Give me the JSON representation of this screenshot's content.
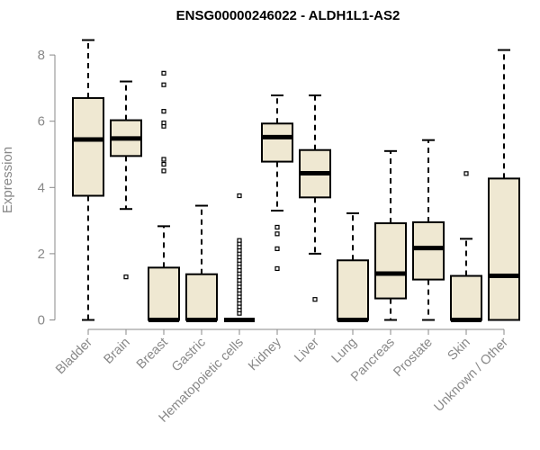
{
  "chart_data": {
    "type": "boxplot",
    "title": "ENSG00000246022 - ALDH1L1-AS2",
    "ylabel": "Expression",
    "xlabel": "",
    "ylim": [
      0,
      8.5
    ],
    "yticks": [
      0,
      2,
      4,
      6,
      8
    ],
    "grid": false,
    "legend": "none",
    "colors": {
      "box_fill": "#efe8d2",
      "stroke": "#000000",
      "axis_text": "#888888"
    },
    "categories": [
      "Bladder",
      "Brain",
      "Breast",
      "Gastric",
      "Hematopoietic cells",
      "Kidney",
      "Liver",
      "Lung",
      "Pancreas",
      "Prostate",
      "Skin",
      "Unknown / Other"
    ],
    "boxes": [
      {
        "category": "Bladder",
        "whisker_low": 0,
        "q1": 3.75,
        "median": 5.45,
        "q3": 6.7,
        "whisker_high": 8.45,
        "outliers": []
      },
      {
        "category": "Brain",
        "whisker_low": 3.35,
        "q1": 4.95,
        "median": 5.48,
        "q3": 6.03,
        "whisker_high": 7.2,
        "outliers": [
          1.3
        ]
      },
      {
        "category": "Breast",
        "whisker_low": 0,
        "q1": 0,
        "median": 0,
        "q3": 1.58,
        "whisker_high": 2.83,
        "outliers": [
          4.5,
          4.7,
          4.85,
          5.85,
          5.95,
          6.3,
          7.1,
          7.45
        ]
      },
      {
        "category": "Gastric",
        "whisker_low": 0,
        "q1": 0,
        "median": 0,
        "q3": 1.38,
        "whisker_high": 3.45,
        "outliers": []
      },
      {
        "category": "Hematopoietic cells",
        "whisker_low": 0,
        "q1": 0,
        "median": 0,
        "q3": 0,
        "whisker_high": 0,
        "outliers": [
          0.2,
          0.3,
          0.4,
          0.5,
          0.6,
          0.7,
          0.8,
          0.9,
          1.0,
          1.1,
          1.2,
          1.3,
          1.4,
          1.5,
          1.6,
          1.7,
          1.8,
          1.9,
          2.0,
          2.1,
          2.2,
          2.3,
          2.4,
          3.75
        ]
      },
      {
        "category": "Kidney",
        "whisker_low": 3.3,
        "q1": 4.78,
        "median": 5.52,
        "q3": 5.93,
        "whisker_high": 6.78,
        "outliers": [
          1.55,
          2.15,
          2.6,
          2.8
        ]
      },
      {
        "category": "Liver",
        "whisker_low": 2.0,
        "q1": 3.7,
        "median": 4.43,
        "q3": 5.13,
        "whisker_high": 6.78,
        "outliers": [
          0.62
        ]
      },
      {
        "category": "Lung",
        "whisker_low": 0,
        "q1": 0,
        "median": 0,
        "q3": 1.8,
        "whisker_high": 3.22,
        "outliers": []
      },
      {
        "category": "Pancreas",
        "whisker_low": 0,
        "q1": 0.65,
        "median": 1.4,
        "q3": 2.92,
        "whisker_high": 5.1,
        "outliers": []
      },
      {
        "category": "Prostate",
        "whisker_low": 0,
        "q1": 1.22,
        "median": 2.17,
        "q3": 2.95,
        "whisker_high": 5.43,
        "outliers": []
      },
      {
        "category": "Skin",
        "whisker_low": 0,
        "q1": 0,
        "median": 0,
        "q3": 1.33,
        "whisker_high": 2.45,
        "outliers": [
          4.42
        ]
      },
      {
        "category": "Unknown / Other",
        "whisker_low": 0,
        "q1": 0,
        "median": 1.33,
        "q3": 4.27,
        "whisker_high": 8.15,
        "outliers": []
      }
    ]
  }
}
